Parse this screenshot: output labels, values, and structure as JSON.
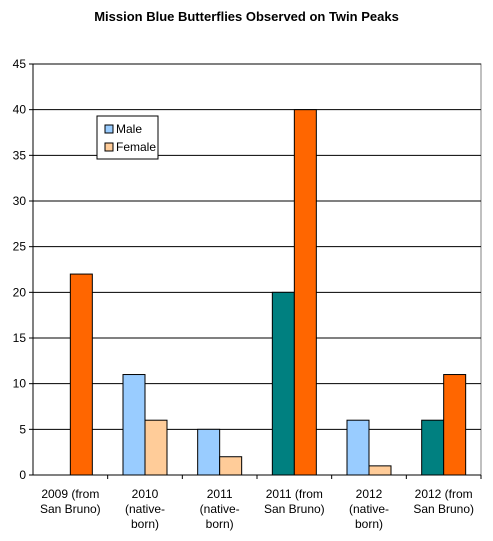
{
  "chart_data": {
    "type": "bar",
    "title": "Mission Blue Butterflies Observed on Twin Peaks",
    "xlabel": "",
    "ylabel": "",
    "ylim": [
      0,
      45
    ],
    "yticks": [
      0,
      5,
      10,
      15,
      20,
      25,
      30,
      35,
      40,
      45
    ],
    "grid": true,
    "categories": [
      [
        "2009 (from",
        "San Bruno)"
      ],
      [
        "2010",
        "(native-",
        "born)"
      ],
      [
        "2011",
        "(native-",
        "born)"
      ],
      [
        "2011 (from",
        "San Bruno)"
      ],
      [
        "2012",
        "(native-",
        "born)"
      ],
      [
        "2012 (from",
        "San Bruno)"
      ]
    ],
    "series": [
      {
        "name": "Male",
        "values": [
          0,
          11,
          5,
          20,
          6,
          6
        ],
        "colors": [
          "#008080",
          "#99ccff",
          "#99ccff",
          "#008080",
          "#99ccff",
          "#008080"
        ]
      },
      {
        "name": "Female",
        "values": [
          22,
          6,
          2,
          40,
          1,
          11
        ],
        "colors": [
          "#ff6600",
          "#ffcc99",
          "#ffcc99",
          "#ff6600",
          "#ffcc99",
          "#ff6600"
        ]
      }
    ],
    "legend": {
      "placement": "top-left inside plot",
      "entries": [
        {
          "name": "Male",
          "color": "#99ccff"
        },
        {
          "name": "Female",
          "color": "#ffcc99"
        }
      ]
    }
  }
}
